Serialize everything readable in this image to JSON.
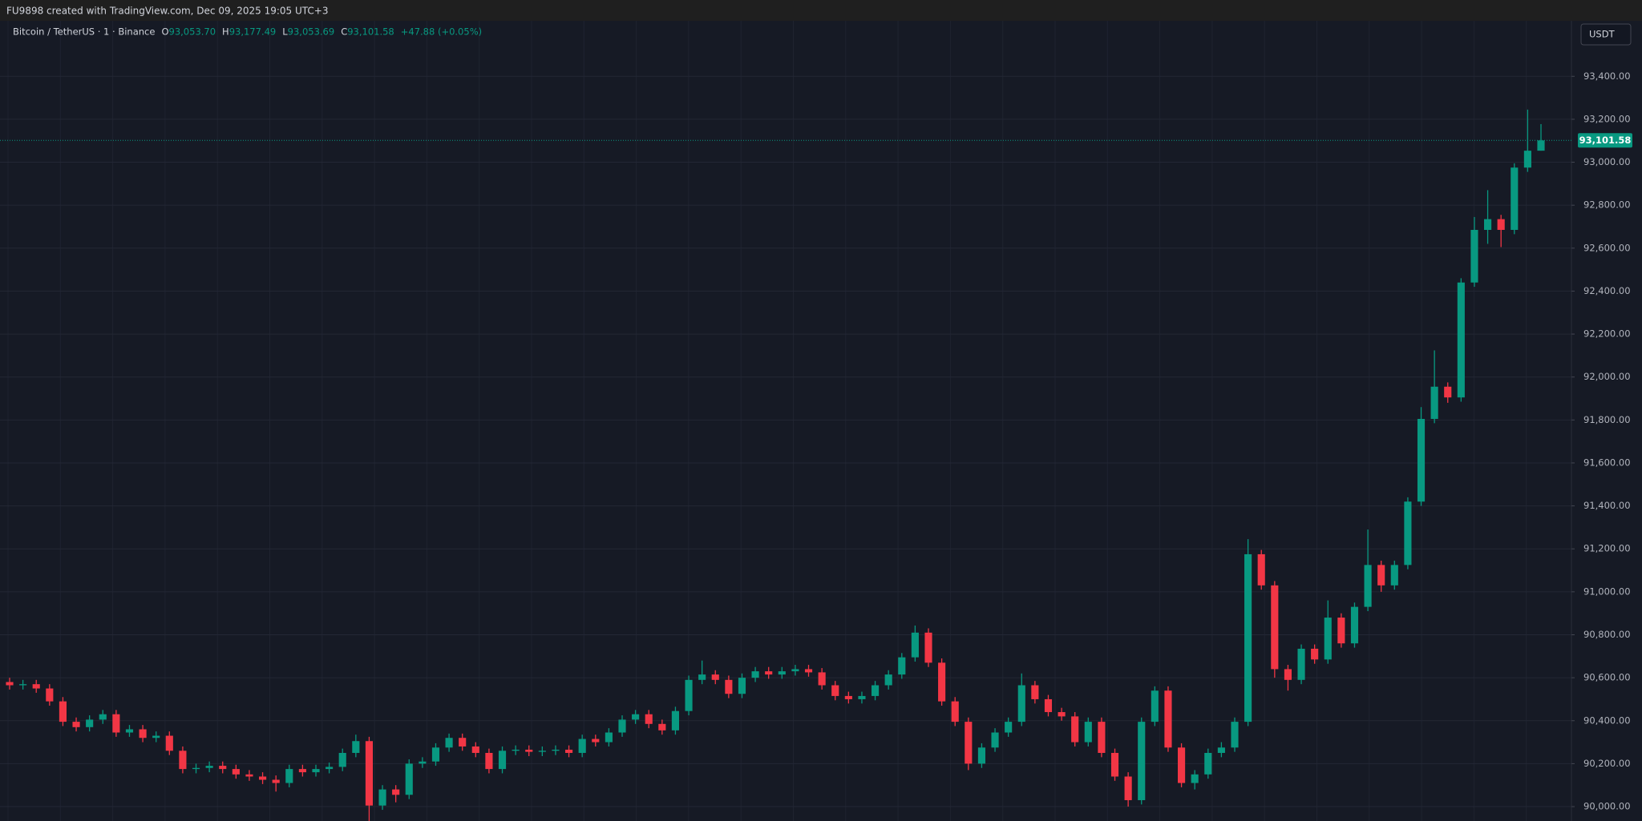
{
  "chart_data": {
    "type": "candlestick",
    "title": "FU9898 created with TradingView.com, Dec 09, 2025 19:05 UTC+3",
    "symbol": "Bitcoin / TetherUS · 1 · Binance",
    "legend": [
      {
        "key": "O",
        "value": "93,053.70"
      },
      {
        "key": "H",
        "value": "93,177.49"
      },
      {
        "key": "L",
        "value": "93,053.69"
      },
      {
        "key": "C",
        "value": "93,101.58"
      }
    ],
    "change": "+47.88 (+0.05%)",
    "currency": "USDT",
    "last_price_label": "93,101.58",
    "up_color": "#089981",
    "down_color": "#f23645",
    "grid": true,
    "ylim": [
      89933,
      93621
    ],
    "yticks": [
      {
        "value": 90000,
        "label": "90,000.00"
      },
      {
        "value": 90200,
        "label": "90,200.00"
      },
      {
        "value": 90400,
        "label": "90,400.00"
      },
      {
        "value": 90600,
        "label": "90,600.00"
      },
      {
        "value": 90800,
        "label": "90,800.00"
      },
      {
        "value": 91000,
        "label": "91,000.00"
      },
      {
        "value": 91200,
        "label": "91,200.00"
      },
      {
        "value": 91400,
        "label": "91,400.00"
      },
      {
        "value": 91600,
        "label": "91,600.00"
      },
      {
        "value": 91800,
        "label": "91,800.00"
      },
      {
        "value": 92000,
        "label": "92,000.00"
      },
      {
        "value": 92200,
        "label": "92,200.00"
      },
      {
        "value": 92400,
        "label": "92,400.00"
      },
      {
        "value": 92600,
        "label": "92,600.00"
      },
      {
        "value": 92800,
        "label": "92,800.00"
      },
      {
        "value": 93000,
        "label": "93,000.00"
      },
      {
        "value": 93200,
        "label": "93,200.00"
      },
      {
        "value": 93400,
        "label": "93,400.00"
      }
    ],
    "open": [
      90580,
      90565,
      90570,
      90550,
      90490,
      90395,
      90370,
      90405,
      90430,
      90345,
      90360,
      90320,
      90330,
      90260,
      90175,
      90180,
      90190,
      90175,
      90150,
      90140,
      90125,
      90110,
      90175,
      90160,
      90175,
      90185,
      90250,
      90305,
      90005,
      90080,
      90055,
      90200,
      90210,
      90275,
      90320,
      90280,
      90250,
      90175,
      90260,
      90265,
      90255,
      90260,
      90265,
      90250,
      90315,
      90300,
      90345,
      90405,
      90430,
      90385,
      90355,
      90445,
      90590,
      90615,
      90590,
      90525,
      90600,
      90630,
      90615,
      90630,
      90640,
      90625,
      90565,
      90515,
      90500,
      90515,
      90565,
      90615,
      90695,
      90810,
      90670,
      90490,
      90395,
      90200,
      90275,
      90345,
      90395,
      90565,
      90500,
      90440,
      90420,
      90300,
      90395,
      90250,
      90140,
      90030,
      90395,
      90540,
      90275,
      90110,
      90150,
      90250,
      90275,
      90395,
      91175,
      91030,
      90640,
      90590,
      90735,
      90685,
      90880,
      90760,
      90930,
      91125,
      91030,
      91125,
      91420,
      91805,
      91955,
      91905,
      92440,
      92685,
      92735,
      92685,
      92975,
      93053.7
    ],
    "high": [
      90600,
      90590,
      90590,
      90570,
      90510,
      90415,
      90425,
      90450,
      90450,
      90380,
      90380,
      90350,
      90350,
      90280,
      90200,
      90210,
      90210,
      90195,
      90170,
      90160,
      90145,
      90195,
      90195,
      90195,
      90205,
      90270,
      90335,
      90325,
      90100,
      90100,
      90220,
      90230,
      90295,
      90340,
      90340,
      90300,
      90270,
      90280,
      90285,
      90285,
      90280,
      90285,
      90285,
      90335,
      90335,
      90365,
      90425,
      90450,
      90450,
      90405,
      90465,
      90610,
      90680,
      90635,
      90610,
      90620,
      90650,
      90650,
      90650,
      90660,
      90660,
      90645,
      90585,
      90535,
      90535,
      90585,
      90635,
      90715,
      90843,
      90830,
      90690,
      90510,
      90415,
      90295,
      90365,
      90415,
      90620,
      90585,
      90520,
      90460,
      90440,
      90415,
      90415,
      90270,
      90160,
      90415,
      90560,
      90560,
      90295,
      90170,
      90270,
      90300,
      90415,
      91245,
      91195,
      91050,
      90660,
      90755,
      90755,
      90960,
      90900,
      90950,
      91290,
      91145,
      91145,
      91440,
      91860,
      92124,
      91975,
      92460,
      92745,
      92870,
      92755,
      92995,
      93245,
      93177.49
    ],
    "low": [
      90545,
      90545,
      90530,
      90470,
      90375,
      90350,
      90350,
      90385,
      90325,
      90325,
      90300,
      90300,
      90240,
      90155,
      90155,
      90160,
      90155,
      90130,
      90120,
      90105,
      90070,
      90090,
      90140,
      90140,
      90155,
      90165,
      90230,
      89930,
      89985,
      90020,
      90035,
      90180,
      90190,
      90255,
      90260,
      90230,
      90155,
      90155,
      90240,
      90235,
      90235,
      90240,
      90230,
      90230,
      90280,
      90280,
      90325,
      90385,
      90365,
      90335,
      90335,
      90425,
      90570,
      90570,
      90505,
      90505,
      90580,
      90595,
      90595,
      90610,
      90605,
      90545,
      90495,
      90480,
      90480,
      90495,
      90545,
      90595,
      90675,
      90650,
      90470,
      90375,
      90170,
      90180,
      90255,
      90325,
      90375,
      90480,
      90420,
      90400,
      90280,
      90280,
      90230,
      90120,
      90000,
      90010,
      90375,
      90255,
      90090,
      90080,
      90130,
      90230,
      90255,
      90375,
      91010,
      90600,
      90540,
      90570,
      90665,
      90665,
      90740,
      90740,
      90910,
      91000,
      91010,
      91105,
      91400,
      91785,
      91880,
      91885,
      92420,
      92620,
      92605,
      92665,
      92955,
      93053.69
    ],
    "close": [
      90565,
      90570,
      90550,
      90490,
      90395,
      90370,
      90405,
      90430,
      90345,
      90360,
      90320,
      90330,
      90260,
      90175,
      90180,
      90190,
      90175,
      90150,
      90140,
      90125,
      90110,
      90175,
      90160,
      90175,
      90185,
      90250,
      90305,
      90005,
      90080,
      90055,
      90200,
      90210,
      90275,
      90320,
      90280,
      90250,
      90175,
      90260,
      90265,
      90255,
      90260,
      90265,
      90250,
      90315,
      90300,
      90345,
      90405,
      90430,
      90385,
      90355,
      90445,
      90590,
      90615,
      90590,
      90525,
      90600,
      90630,
      90615,
      90630,
      90640,
      90625,
      90565,
      90515,
      90500,
      90515,
      90565,
      90615,
      90695,
      90810,
      90670,
      90490,
      90395,
      90200,
      90275,
      90345,
      90395,
      90565,
      90500,
      90440,
      90420,
      90300,
      90395,
      90250,
      90140,
      90030,
      90395,
      90540,
      90275,
      90110,
      90150,
      90250,
      90275,
      90395,
      91175,
      91030,
      90640,
      90590,
      90735,
      90685,
      90880,
      90760,
      90930,
      91125,
      91030,
      91125,
      91420,
      91805,
      91955,
      91905,
      92440,
      92685,
      92735,
      92685,
      92975,
      93053.7,
      93101.58
    ]
  }
}
